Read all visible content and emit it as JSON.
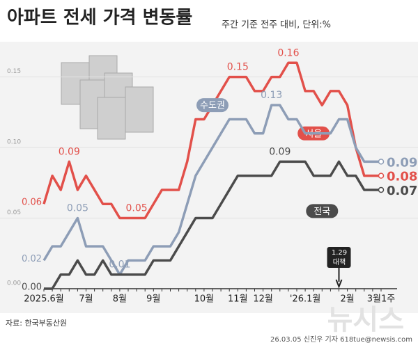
{
  "chart_data": {
    "type": "line",
    "title": "아파트 전세 가격 변동률",
    "subtitle": "주간 기준 전주 대비, 단위:%",
    "source": "자료: 한국부동산원",
    "credit": "26.03.05 신진우 기자 618tue@newsis.com",
    "watermark": "뉴시스",
    "annotation": [
      "1.29",
      "대책"
    ],
    "categories": [
      "2025.6월",
      null,
      null,
      null,
      null,
      "7월",
      null,
      null,
      null,
      "8월",
      null,
      null,
      null,
      "9월",
      null,
      null,
      null,
      null,
      null,
      "10월",
      null,
      null,
      null,
      "11월",
      null,
      null,
      "12월",
      null,
      null,
      null,
      null,
      "'26.1월",
      null,
      null,
      null,
      null,
      "2월",
      null,
      null,
      null,
      "3월1주"
    ],
    "series": [
      {
        "name": "서울",
        "color": "#e2504a",
        "values": [
          0.06,
          0.08,
          0.07,
          0.09,
          0.07,
          0.08,
          0.07,
          0.06,
          0.06,
          0.05,
          0.05,
          0.05,
          0.05,
          0.06,
          0.07,
          0.07,
          0.07,
          0.09,
          0.12,
          0.12,
          0.13,
          0.14,
          0.15,
          0.15,
          0.15,
          0.14,
          0.14,
          0.15,
          0.15,
          0.16,
          0.16,
          0.14,
          0.14,
          0.13,
          0.14,
          0.14,
          0.13,
          0.1,
          0.08,
          0.08,
          0.08
        ],
        "value_labels": [
          "0.06",
          null,
          null,
          "0.09",
          null,
          null,
          null,
          null,
          null,
          null,
          null,
          "0.05",
          null,
          null,
          null,
          null,
          null,
          null,
          null,
          null,
          null,
          null,
          null,
          "0.15",
          null,
          null,
          null,
          null,
          null,
          "0.16",
          null,
          null,
          null,
          null,
          null,
          null,
          null,
          null,
          null,
          null,
          "0.08"
        ]
      },
      {
        "name": "수도권",
        "color": "#8d9db6",
        "values": [
          0.02,
          0.03,
          0.03,
          0.04,
          0.05,
          0.03,
          0.03,
          0.03,
          0.02,
          0.01,
          0.02,
          0.02,
          0.02,
          0.03,
          0.03,
          0.03,
          0.04,
          0.06,
          0.08,
          0.09,
          0.1,
          0.11,
          0.12,
          0.12,
          0.12,
          0.11,
          0.11,
          0.13,
          0.13,
          0.12,
          0.12,
          0.11,
          0.11,
          0.11,
          0.11,
          0.12,
          0.12,
          0.1,
          0.09,
          0.09,
          0.09
        ],
        "value_labels": [
          "0.02",
          null,
          null,
          null,
          "0.05",
          null,
          null,
          null,
          null,
          "0.01",
          null,
          null,
          null,
          null,
          null,
          null,
          null,
          null,
          null,
          null,
          null,
          null,
          null,
          null,
          null,
          null,
          null,
          "0.13",
          null,
          null,
          null,
          null,
          null,
          null,
          null,
          null,
          null,
          null,
          null,
          null,
          "0.09"
        ]
      },
      {
        "name": "전국",
        "color": "#4b4b4b",
        "values": [
          0.0,
          0.0,
          0.01,
          0.01,
          0.02,
          0.01,
          0.01,
          0.02,
          0.01,
          0.01,
          0.01,
          0.01,
          0.01,
          0.02,
          0.02,
          0.02,
          0.03,
          0.04,
          0.05,
          0.05,
          0.05,
          0.06,
          0.07,
          0.08,
          0.08,
          0.08,
          0.08,
          0.08,
          0.09,
          0.09,
          0.09,
          0.09,
          0.08,
          0.08,
          0.08,
          0.09,
          0.08,
          0.08,
          0.07,
          0.07,
          0.07
        ],
        "value_labels": [
          "0.00",
          null,
          null,
          null,
          null,
          null,
          null,
          null,
          null,
          null,
          null,
          null,
          null,
          null,
          null,
          null,
          null,
          null,
          null,
          null,
          null,
          null,
          null,
          null,
          null,
          null,
          null,
          null,
          "0.09",
          null,
          null,
          null,
          null,
          null,
          null,
          null,
          null,
          null,
          null,
          null,
          "0.07"
        ]
      }
    ],
    "ylim": [
      0,
      0.17
    ],
    "yticks": [
      {
        "value": 0,
        "label": "0.00"
      },
      {
        "value": 0.05,
        "label": "0.05"
      },
      {
        "value": 0.1,
        "label": "0.10"
      },
      {
        "value": 0.15,
        "label": "0.15"
      }
    ],
    "grid": true
  }
}
